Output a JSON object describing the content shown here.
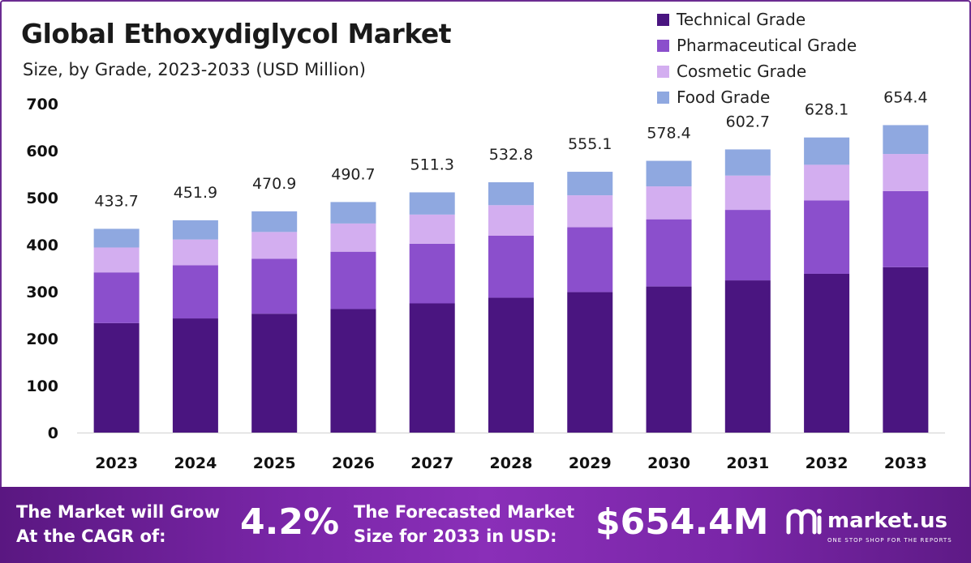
{
  "chart_data": {
    "type": "bar",
    "stacked": true,
    "title": "Global Ethoxydiglycol Market",
    "subtitle": "Size, by Grade, 2023-2033 (USD Million)",
    "categories": [
      "2023",
      "2024",
      "2025",
      "2026",
      "2027",
      "2028",
      "2029",
      "2030",
      "2031",
      "2032",
      "2033"
    ],
    "series": [
      {
        "name": "Technical Grade",
        "color": "#4a1580",
        "values": [
          233,
          243,
          253,
          263,
          275,
          287,
          299,
          311,
          324,
          338,
          352
        ]
      },
      {
        "name": "Pharmaceutical Grade",
        "color": "#8b4fcc",
        "values": [
          108,
          113,
          117,
          122,
          127,
          132,
          138,
          143,
          150,
          156,
          162
        ]
      },
      {
        "name": "Cosmetic Grade",
        "color": "#d3aef0",
        "values": [
          53,
          55,
          57,
          60,
          62,
          65,
          68,
          70,
          73,
          76,
          79
        ]
      },
      {
        "name": "Food Grade",
        "color": "#8fa8e0",
        "values": [
          39.7,
          40.9,
          43.9,
          45.7,
          47.3,
          48.8,
          50.1,
          54.4,
          55.7,
          58.1,
          61.4
        ]
      }
    ],
    "totals": [
      "433.7",
      "451.9",
      "470.9",
      "490.7",
      "511.3",
      "532.8",
      "555.1",
      "578.4",
      "602.7",
      "628.1",
      "654.4"
    ],
    "ylim": [
      0,
      700
    ],
    "yticks": [
      0,
      100,
      200,
      300,
      400,
      500,
      600,
      700
    ],
    "xlabel": "",
    "ylabel": "",
    "legend_position": "top-right",
    "grid": false
  },
  "footer": {
    "cagr_line1": "The Market will Grow",
    "cagr_line2": "At the CAGR of:",
    "cagr_value": "4.2%",
    "forecast_line1": "The Forecasted Market",
    "forecast_line2": "Size for 2033 in USD:",
    "forecast_value": "$654.4M",
    "brand": "market.us",
    "tagline": "ONE STOP SHOP FOR THE REPORTS"
  }
}
